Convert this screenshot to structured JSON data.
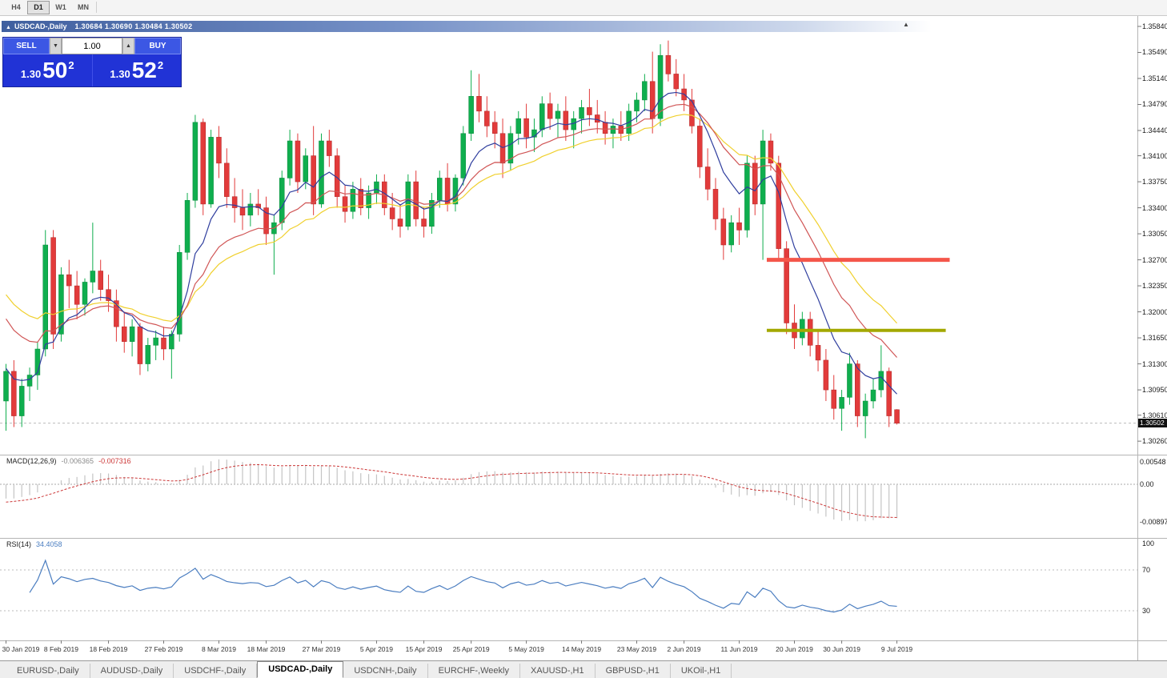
{
  "toolbar": {
    "timeframes": [
      {
        "label": "H4",
        "active": false
      },
      {
        "label": "D1",
        "active": true
      },
      {
        "label": "W1",
        "active": false
      },
      {
        "label": "MN",
        "active": false
      }
    ]
  },
  "chart_header": {
    "symbol_title": "USDCAD-,Daily",
    "ohlc_text": "1.30684 1.30690 1.30484 1.30502"
  },
  "trade_panel": {
    "sell_label": "SELL",
    "buy_label": "BUY",
    "quantity": "1.00",
    "spin_down": "▼",
    "spin_up": "▲",
    "sell_price_main": "1.30",
    "sell_price_big": "50",
    "sell_price_sup": "2",
    "buy_price_main": "1.30",
    "buy_price_big": "52",
    "buy_price_sup": "2"
  },
  "price_scale": {
    "labels": [
      "1.35840",
      "1.35490",
      "1.35140",
      "1.34790",
      "1.34440",
      "1.34100",
      "1.33750",
      "1.33400",
      "1.33050",
      "1.32700",
      "1.32350",
      "1.32000",
      "1.31650",
      "1.31300",
      "1.30950",
      "1.30610",
      "1.30260"
    ],
    "current_price": "1.30502"
  },
  "indicators": {
    "macd": {
      "label": "MACD(12,26,9)",
      "value_main": "-0.006365",
      "value_signal": "-0.007316",
      "scale": [
        {
          "label": "0.00548",
          "value": 0.00548
        },
        {
          "label": "0.00",
          "value": 0.0
        },
        {
          "label": "-0.00897",
          "value": -0.00897
        }
      ]
    },
    "rsi": {
      "label": "RSI(14)",
      "value": "34.4058",
      "scale": [
        {
          "label": "100",
          "value": 100
        },
        {
          "label": "70",
          "value": 70
        },
        {
          "label": "30",
          "value": 30
        }
      ],
      "levels": [
        70,
        30
      ]
    }
  },
  "x_axis": {
    "labels": [
      "30 Jan 2019",
      "8 Feb 2019",
      "18 Feb 2019",
      "27 Feb 2019",
      "8 Mar 2019",
      "18 Mar 2019",
      "27 Mar 2019",
      "5 Apr 2019",
      "15 Apr 2019",
      "25 Apr 2019",
      "5 May 2019",
      "14 May 2019",
      "23 May 2019",
      "2 Jun 2019",
      "11 Jun 2019",
      "20 Jun 2019",
      "30 Jun 2019",
      "9 Jul 2019"
    ],
    "tick_indices": [
      0,
      7,
      13,
      20,
      27,
      33,
      40,
      47,
      53,
      59,
      66,
      73,
      80,
      86,
      93,
      100,
      106,
      113
    ]
  },
  "tabs": [
    {
      "label": "EURUSD-,Daily",
      "active": false
    },
    {
      "label": "AUDUSD-,Daily",
      "active": false
    },
    {
      "label": "USDCHF-,Daily",
      "active": false
    },
    {
      "label": "USDCAD-,Daily",
      "active": true
    },
    {
      "label": "USDCNH-,Daily",
      "active": false
    },
    {
      "label": "EURCHF-,Weekly",
      "active": false
    },
    {
      "label": "XAUUSD-,H1",
      "active": false
    },
    {
      "label": "GBPUSD-,H1",
      "active": false
    },
    {
      "label": "UKOil-,H1",
      "active": false
    }
  ],
  "colors": {
    "candle_up": "#0fae4e",
    "candle_up_border": "#0a8a3c",
    "candle_down": "#e23b3b",
    "candle_down_border": "#b02525",
    "ma_fast": "#2f3e9e",
    "ma_mid": "#d05555",
    "ma_slow": "#f0d02e",
    "hline_resistance": "#f4564a",
    "hline_support": "#a3a800",
    "macd_hist": "#c4c4c4",
    "macd_signal": "#cc3838",
    "rsi_line": "#4a7dc0",
    "grid_gray": "#a8a8a8"
  },
  "chart_data": {
    "type": "candlestick",
    "symbol": "USDCAD",
    "timeframe": "Daily",
    "title": "USDCAD-,Daily",
    "axis": {
      "price_top_label": 1.3584,
      "price_bottom_label": 1.3026,
      "label_step": 0.0035,
      "date_range": "30 Jan 2019 - 9 Jul 2019"
    },
    "current_price": 1.30502,
    "current_ohlc": {
      "open": 1.30684,
      "high": 1.3069,
      "low": 1.30484,
      "close": 1.30502
    },
    "overlays": {
      "ma_fast_ema": 8,
      "ma_mid_ema": 16,
      "ma_slow_ema": 24
    },
    "hlines": [
      {
        "price": 1.327,
        "from_index": 96.8,
        "to_index": 120,
        "color_key": "hline_resistance",
        "width": 5
      },
      {
        "price": 1.3175,
        "from_index": 96.8,
        "to_index": 119.5,
        "color_key": "hline_support",
        "width": 4
      }
    ],
    "sub_indicators": [
      {
        "type": "macd",
        "params": [
          12,
          26,
          9
        ],
        "last_main": -0.006365,
        "last_signal": -0.007316
      },
      {
        "type": "rsi",
        "params": [
          14
        ],
        "last_value": 34.4058,
        "levels": [
          70,
          30
        ]
      }
    ],
    "candles": [
      [
        1.308,
        1.313,
        1.304,
        1.312
      ],
      [
        1.312,
        1.3135,
        1.3045,
        1.306
      ],
      [
        1.306,
        1.311,
        1.3045,
        1.31
      ],
      [
        1.31,
        1.3125,
        1.308,
        1.3115
      ],
      [
        1.3115,
        1.316,
        1.3095,
        1.315
      ],
      [
        1.315,
        1.331,
        1.314,
        1.329
      ],
      [
        1.33,
        1.331,
        1.315,
        1.317
      ],
      [
        1.317,
        1.326,
        1.316,
        1.325
      ],
      [
        1.325,
        1.327,
        1.3205,
        1.3235
      ],
      [
        1.3235,
        1.3255,
        1.319,
        1.321
      ],
      [
        1.321,
        1.3245,
        1.3195,
        1.324
      ],
      [
        1.324,
        1.332,
        1.3225,
        1.3255
      ],
      [
        1.3255,
        1.327,
        1.3215,
        1.323
      ],
      [
        1.323,
        1.325,
        1.32,
        1.3215
      ],
      [
        1.3215,
        1.323,
        1.316,
        1.318
      ],
      [
        1.318,
        1.32,
        1.3145,
        1.316
      ],
      [
        1.316,
        1.319,
        1.314,
        1.318
      ],
      [
        1.318,
        1.3185,
        1.3115,
        1.313
      ],
      [
        1.313,
        1.3165,
        1.312,
        1.3155
      ],
      [
        1.3155,
        1.3175,
        1.3135,
        1.3165
      ],
      [
        1.3165,
        1.318,
        1.3135,
        1.315
      ],
      [
        1.315,
        1.3175,
        1.311,
        1.317
      ],
      [
        1.317,
        1.329,
        1.316,
        1.328
      ],
      [
        1.328,
        1.336,
        1.327,
        1.335
      ],
      [
        1.335,
        1.3465,
        1.334,
        1.3455
      ],
      [
        1.3455,
        1.346,
        1.333,
        1.3345
      ],
      [
        1.3345,
        1.3445,
        1.334,
        1.3435
      ],
      [
        1.3435,
        1.345,
        1.338,
        1.34
      ],
      [
        1.34,
        1.342,
        1.334,
        1.3355
      ],
      [
        1.3355,
        1.338,
        1.332,
        1.334
      ],
      [
        1.334,
        1.3365,
        1.331,
        1.333
      ],
      [
        1.333,
        1.336,
        1.3315,
        1.3345
      ],
      [
        1.3345,
        1.3365,
        1.333,
        1.334
      ],
      [
        1.334,
        1.3355,
        1.329,
        1.3305
      ],
      [
        1.3305,
        1.333,
        1.325,
        1.332
      ],
      [
        1.332,
        1.339,
        1.331,
        1.338
      ],
      [
        1.338,
        1.3445,
        1.337,
        1.343
      ],
      [
        1.343,
        1.344,
        1.336,
        1.3375
      ],
      [
        1.3375,
        1.342,
        1.3365,
        1.341
      ],
      [
        1.341,
        1.345,
        1.333,
        1.3345
      ],
      [
        1.3345,
        1.344,
        1.334,
        1.343
      ],
      [
        1.343,
        1.3445,
        1.3395,
        1.341
      ],
      [
        1.341,
        1.342,
        1.334,
        1.3355
      ],
      [
        1.3355,
        1.337,
        1.332,
        1.3335
      ],
      [
        1.3335,
        1.3375,
        1.3325,
        1.3365
      ],
      [
        1.3365,
        1.338,
        1.333,
        1.334
      ],
      [
        1.334,
        1.337,
        1.3325,
        1.336
      ],
      [
        1.336,
        1.3385,
        1.3345,
        1.3375
      ],
      [
        1.3375,
        1.3385,
        1.333,
        1.334
      ],
      [
        1.334,
        1.336,
        1.331,
        1.3325
      ],
      [
        1.3325,
        1.3345,
        1.33,
        1.3315
      ],
      [
        1.3315,
        1.3385,
        1.331,
        1.3375
      ],
      [
        1.3375,
        1.339,
        1.3315,
        1.3325
      ],
      [
        1.3325,
        1.334,
        1.33,
        1.3315
      ],
      [
        1.3315,
        1.336,
        1.3305,
        1.335
      ],
      [
        1.335,
        1.339,
        1.334,
        1.338
      ],
      [
        1.338,
        1.34,
        1.3335,
        1.3345
      ],
      [
        1.3345,
        1.3385,
        1.3335,
        1.338
      ],
      [
        1.338,
        1.345,
        1.337,
        1.344
      ],
      [
        1.344,
        1.3525,
        1.343,
        1.349
      ],
      [
        1.349,
        1.352,
        1.3455,
        1.347
      ],
      [
        1.347,
        1.349,
        1.3435,
        1.345
      ],
      [
        1.3455,
        1.347,
        1.342,
        1.344
      ],
      [
        1.344,
        1.346,
        1.338,
        1.34
      ],
      [
        1.34,
        1.345,
        1.339,
        1.344
      ],
      [
        1.344,
        1.347,
        1.3425,
        1.346
      ],
      [
        1.346,
        1.348,
        1.342,
        1.3435
      ],
      [
        1.3435,
        1.346,
        1.3415,
        1.3445
      ],
      [
        1.3445,
        1.349,
        1.3435,
        1.348
      ],
      [
        1.348,
        1.3495,
        1.3445,
        1.346
      ],
      [
        1.346,
        1.348,
        1.3435,
        1.347
      ],
      [
        1.347,
        1.349,
        1.343,
        1.3445
      ],
      [
        1.3445,
        1.347,
        1.342,
        1.346
      ],
      [
        1.346,
        1.3485,
        1.344,
        1.3475
      ],
      [
        1.3475,
        1.35,
        1.345,
        1.3465
      ],
      [
        1.3465,
        1.3485,
        1.344,
        1.3455
      ],
      [
        1.3455,
        1.347,
        1.3425,
        1.344
      ],
      [
        1.344,
        1.346,
        1.342,
        1.345
      ],
      [
        1.345,
        1.347,
        1.343,
        1.344
      ],
      [
        1.344,
        1.348,
        1.343,
        1.347
      ],
      [
        1.347,
        1.3495,
        1.3455,
        1.3485
      ],
      [
        1.3485,
        1.352,
        1.347,
        1.351
      ],
      [
        1.351,
        1.355,
        1.344,
        1.346
      ],
      [
        1.346,
        1.356,
        1.345,
        1.3545
      ],
      [
        1.3545,
        1.3565,
        1.351,
        1.352
      ],
      [
        1.352,
        1.354,
        1.349,
        1.35
      ],
      [
        1.35,
        1.352,
        1.347,
        1.3485
      ],
      [
        1.3485,
        1.35,
        1.344,
        1.345
      ],
      [
        1.345,
        1.346,
        1.338,
        1.3395
      ],
      [
        1.3395,
        1.342,
        1.335,
        1.3365
      ],
      [
        1.3365,
        1.338,
        1.331,
        1.3325
      ],
      [
        1.3325,
        1.334,
        1.327,
        1.329
      ],
      [
        1.329,
        1.333,
        1.328,
        1.332
      ],
      [
        1.332,
        1.334,
        1.329,
        1.331
      ],
      [
        1.331,
        1.341,
        1.33,
        1.34
      ],
      [
        1.34,
        1.341,
        1.333,
        1.3345
      ],
      [
        1.3345,
        1.3445,
        1.327,
        1.343
      ],
      [
        1.343,
        1.344,
        1.339,
        1.34
      ],
      [
        1.34,
        1.341,
        1.327,
        1.3285
      ],
      [
        1.3285,
        1.3295,
        1.317,
        1.3185
      ],
      [
        1.3185,
        1.321,
        1.315,
        1.3165
      ],
      [
        1.3165,
        1.32,
        1.3155,
        1.319
      ],
      [
        1.319,
        1.32,
        1.314,
        1.3155
      ],
      [
        1.3155,
        1.3175,
        1.312,
        1.3135
      ],
      [
        1.3135,
        1.315,
        1.308,
        1.3095
      ],
      [
        1.3095,
        1.3115,
        1.3055,
        1.307
      ],
      [
        1.307,
        1.3095,
        1.304,
        1.3085
      ],
      [
        1.3085,
        1.3145,
        1.3075,
        1.313
      ],
      [
        1.313,
        1.3135,
        1.3045,
        1.306
      ],
      [
        1.306,
        1.309,
        1.303,
        1.308
      ],
      [
        1.308,
        1.311,
        1.307,
        1.3095
      ],
      [
        1.3095,
        1.3155,
        1.3085,
        1.312
      ],
      [
        1.312,
        1.3125,
        1.3045,
        1.306
      ],
      [
        1.30684,
        1.3069,
        1.30484,
        1.30502
      ]
    ]
  }
}
